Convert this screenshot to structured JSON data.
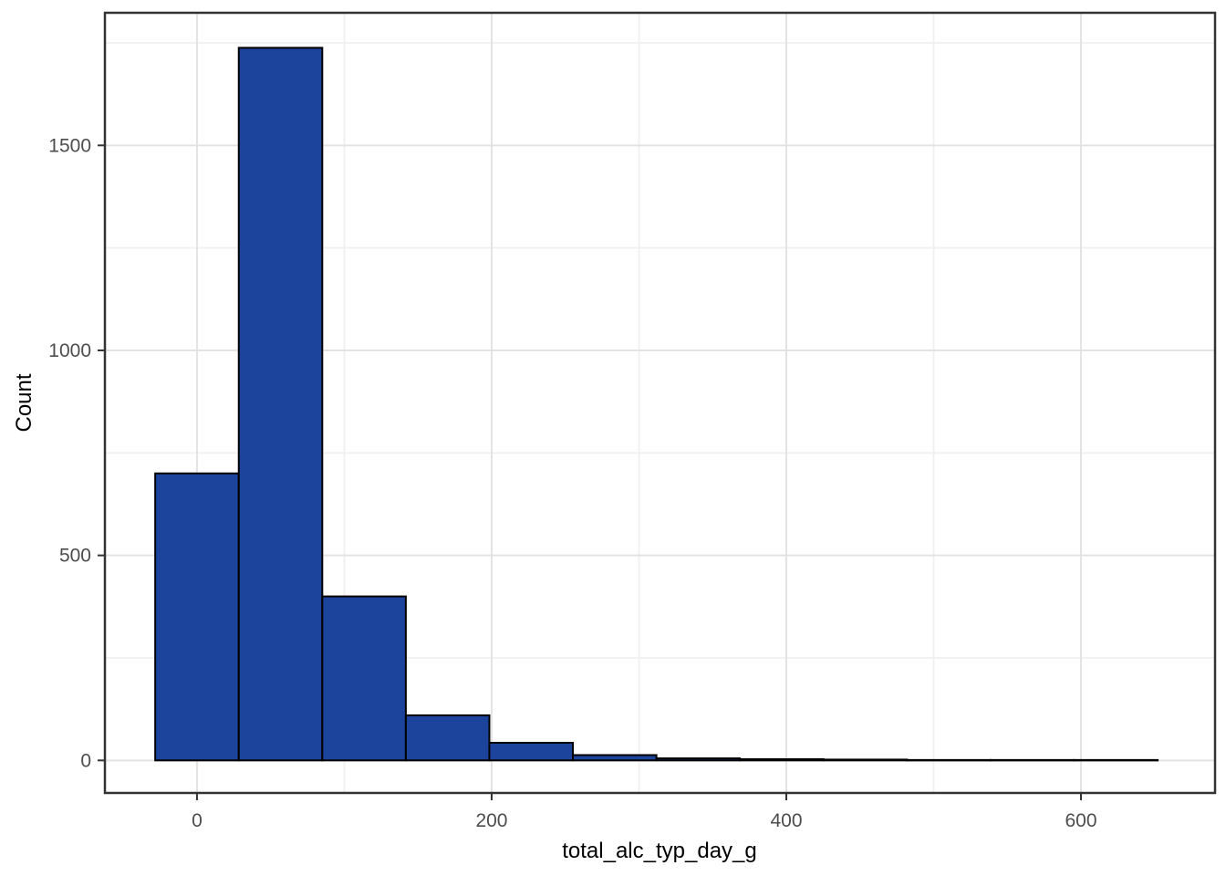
{
  "figure": {
    "background": "#ffffff",
    "panel_border_color": "#333333",
    "panel_background": "#ffffff",
    "grid_major_color": "#e3e3e3",
    "grid_minor_color": "#f1f1f1",
    "tick_color": "#333333",
    "tick_label_color": "#4d4d4d",
    "axis_title_color": "#000000"
  },
  "chart_data": {
    "type": "bar",
    "subtype": "histogram",
    "title": "",
    "xlabel": "total_alc_typ_day_g",
    "ylabel": "Count",
    "bar_fill": "#1c449c",
    "bar_stroke": "#000000",
    "bin_start": -28.35,
    "bin_width": 56.7,
    "counts": [
      700,
      1738,
      400,
      110,
      43,
      13,
      5,
      3,
      2,
      1,
      1,
      1
    ],
    "x_ticks": [
      0,
      200,
      400,
      600
    ],
    "x_minor_gridlines": [
      100,
      300,
      500
    ],
    "y_ticks": [
      0,
      500,
      1000,
      1500
    ],
    "y_minor_gridlines": [
      250,
      750,
      1250,
      1750
    ],
    "xlim": [
      -62.5,
      691
    ],
    "ylim": [
      -79.4,
      1823.4
    ],
    "grid": "on",
    "legend": "none"
  }
}
